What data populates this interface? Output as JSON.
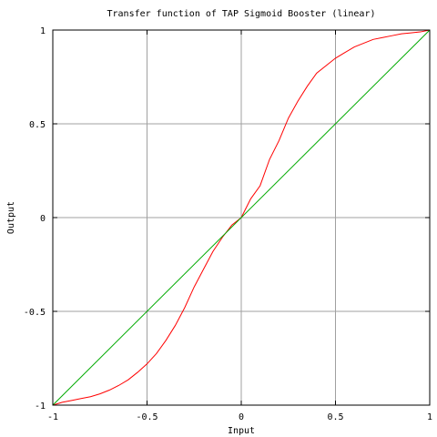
{
  "colors": {
    "background": "#ffffff",
    "frame": "#000000",
    "grid": "#a0a0a0",
    "sigmoid_curve": "#ff0000",
    "identity_line": "#00aa00"
  },
  "chart_data": {
    "type": "line",
    "title": "Transfer function of TAP Sigmoid Booster (linear)",
    "xlabel": "Input",
    "ylabel": "Output",
    "xlim": [
      -1,
      1
    ],
    "ylim": [
      -1,
      1
    ],
    "grid": true,
    "legend": "none",
    "x_ticks": [
      {
        "value": -1,
        "label": "-1"
      },
      {
        "value": -0.5,
        "label": "-0.5"
      },
      {
        "value": 0,
        "label": "0"
      },
      {
        "value": 0.5,
        "label": "0.5"
      },
      {
        "value": 1,
        "label": "1"
      }
    ],
    "y_ticks": [
      {
        "value": -1,
        "label": "-1"
      },
      {
        "value": -0.5,
        "label": "-0.5"
      },
      {
        "value": 0,
        "label": "0"
      },
      {
        "value": 0.5,
        "label": "0.5"
      },
      {
        "value": 1,
        "label": "1"
      }
    ],
    "series": [
      {
        "color": "#ff0000",
        "x": [
          -1,
          -0.95,
          -0.9,
          -0.85,
          -0.8,
          -0.75,
          -0.7,
          -0.65,
          -0.6,
          -0.55,
          -0.5,
          -0.45,
          -0.4,
          -0.35,
          -0.3,
          -0.25,
          -0.2,
          -0.15,
          -0.1,
          -0.05,
          0,
          0.05,
          0.1,
          0.15,
          0.2,
          0.25,
          0.3,
          0.35,
          0.4,
          0.45,
          0.5,
          0.55,
          0.6,
          0.65,
          0.7,
          0.75,
          0.8,
          0.85,
          0.9,
          0.95,
          1
        ],
        "y": [
          -1,
          -0.985,
          -0.975,
          -0.965,
          -0.955,
          -0.94,
          -0.92,
          -0.895,
          -0.865,
          -0.825,
          -0.78,
          -0.725,
          -0.655,
          -0.575,
          -0.48,
          -0.37,
          -0.275,
          -0.18,
          -0.105,
          -0.04,
          0,
          0.1,
          0.17,
          0.31,
          0.41,
          0.53,
          0.62,
          0.7,
          0.77,
          0.81,
          0.85,
          0.88,
          0.91,
          0.93,
          0.95,
          0.96,
          0.97,
          0.98,
          0.985,
          0.99,
          1.0
        ]
      },
      {
        "color": "#00aa00",
        "x": [
          -1,
          1
        ],
        "y": [
          -1,
          1
        ]
      }
    ]
  }
}
